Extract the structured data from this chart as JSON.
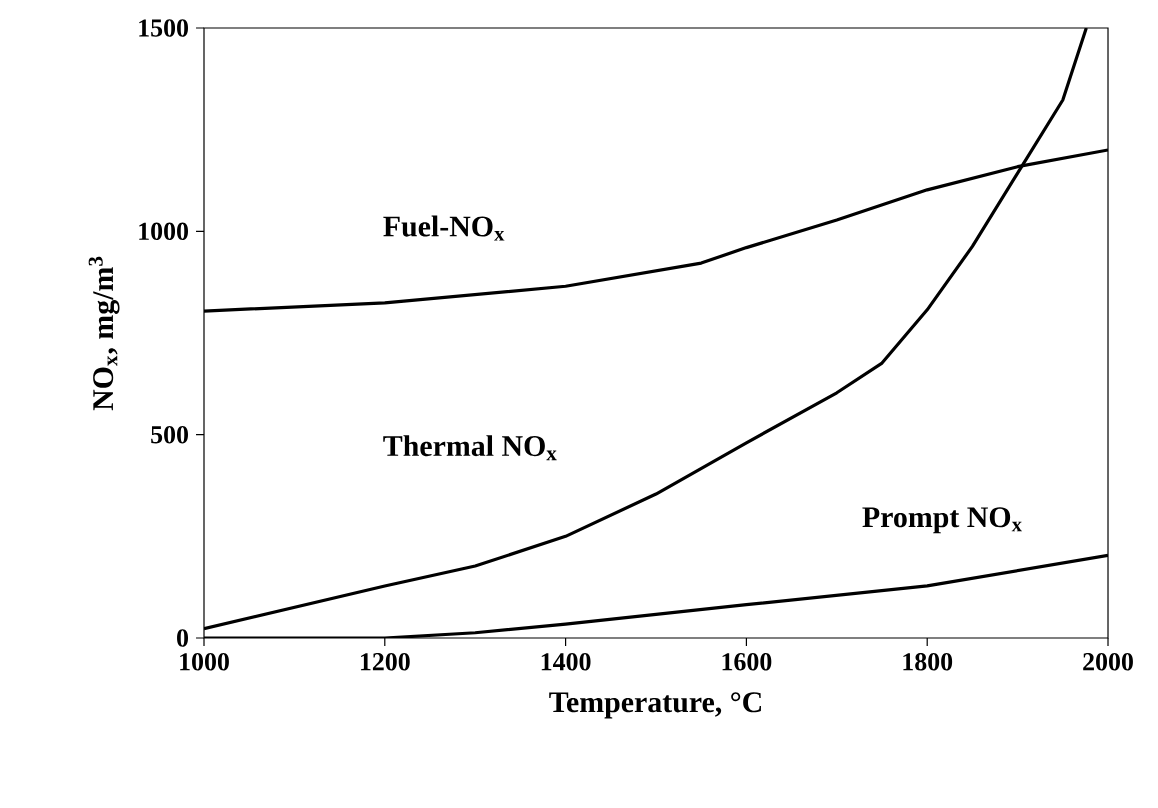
{
  "chart_data": {
    "type": "line",
    "xlabel": "Temperature, °C",
    "ylabel": "NO$_{x}$, mg/m$^{3}$",
    "xlim": [
      1000,
      2000
    ],
    "xticks": [
      1000,
      1200,
      1400,
      1600,
      1800,
      2000
    ],
    "ylim": [
      0,
      1500
    ],
    "yticks": [
      0,
      500,
      1000,
      1500
    ],
    "grid": false,
    "legend": false,
    "marker": "none",
    "line_style": "solid",
    "series": [
      {
        "name": "Fuel-NO$_{x}$",
        "color": "#000000",
        "x": [
          1000,
          1200,
          1400,
          1550,
          1600,
          1700,
          1800,
          1900,
          2000
        ],
        "values": [
          804,
          824,
          865,
          922,
          960,
          1028,
          1102,
          1159,
          1200
        ]
      },
      {
        "name": "Thermal NO$_{x}$",
        "color": "#000000",
        "x": [
          1000,
          1200,
          1300,
          1400,
          1500,
          1600,
          1700,
          1750,
          1800,
          1850,
          1900,
          1950,
          1976
        ],
        "values": [
          23,
          128,
          177,
          250,
          354,
          480,
          603,
          676,
          807,
          963,
          1143,
          1323,
          1500
        ]
      },
      {
        "name": "Prompt NO$_{x}$",
        "color": "#000000",
        "x": [
          1000,
          1200,
          1300,
          1400,
          1600,
          1800,
          2000
        ],
        "values": [
          0,
          0,
          13,
          34,
          82,
          128,
          203
        ]
      }
    ]
  }
}
